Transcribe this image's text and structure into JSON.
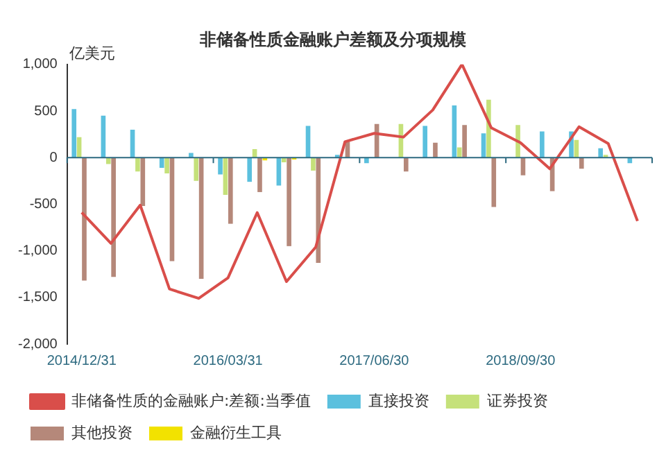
{
  "chart_data": {
    "type": "bar",
    "title": "非储备性质金融账户差额及分项规模",
    "ylabel": "亿美元",
    "categories": [
      "2014/12/31",
      null,
      null,
      null,
      null,
      "2016/03/31",
      null,
      null,
      null,
      null,
      "2017/06/30",
      null,
      null,
      null,
      null,
      "2018/09/30",
      null,
      null,
      null,
      null
    ],
    "series": [
      {
        "name": "非储备性质的金融账户:差额:当季值",
        "type": "line",
        "color": "#d94e4a",
        "values": [
          -590,
          -920,
          -510,
          -1410,
          -1510,
          -1290,
          -590,
          -1330,
          -960,
          170,
          260,
          220,
          510,
          1000,
          320,
          160,
          -120,
          330,
          150,
          -680
        ]
      },
      {
        "name": "直接投资",
        "color": "#5bc0de",
        "values": [
          520,
          450,
          300,
          -110,
          50,
          -180,
          -260,
          -300,
          340,
          30,
          -60,
          0,
          340,
          560,
          260,
          0,
          280,
          280,
          100,
          -60
        ]
      },
      {
        "name": "证券投资",
        "color": "#c5e17a",
        "values": [
          220,
          -70,
          -150,
          -170,
          -250,
          -400,
          90,
          -50,
          -140,
          0,
          0,
          360,
          0,
          110,
          620,
          350,
          0,
          190,
          30,
          0
        ]
      },
      {
        "name": "其他投资",
        "color": "#b5887a",
        "values": [
          -1320,
          -1280,
          -520,
          -1110,
          -1300,
          -710,
          -370,
          -950,
          -1130,
          170,
          360,
          -150,
          160,
          350,
          -530,
          -190,
          -360,
          -120,
          0,
          0
        ]
      },
      {
        "name": "金融衍生工具",
        "color": "#f2e200",
        "values": [
          0,
          0,
          0,
          0,
          0,
          0,
          -30,
          -20,
          0,
          0,
          0,
          0,
          0,
          0,
          0,
          0,
          0,
          0,
          0,
          0
        ]
      }
    ],
    "ylim": [
      -2000,
      1000
    ],
    "yticks": [
      {
        "value": -2000,
        "label": "-2,000"
      },
      {
        "value": -1500,
        "label": "-1,500"
      },
      {
        "value": -1000,
        "label": "-1,000"
      },
      -500,
      0,
      500,
      {
        "value": 1000,
        "label": "1,000"
      }
    ],
    "ref_lines": [
      {
        "axis": "y",
        "value": 0,
        "color": "#2d6a80"
      }
    ],
    "grid": false,
    "legend": "bottom",
    "marker": "none",
    "line_style": "solid"
  }
}
